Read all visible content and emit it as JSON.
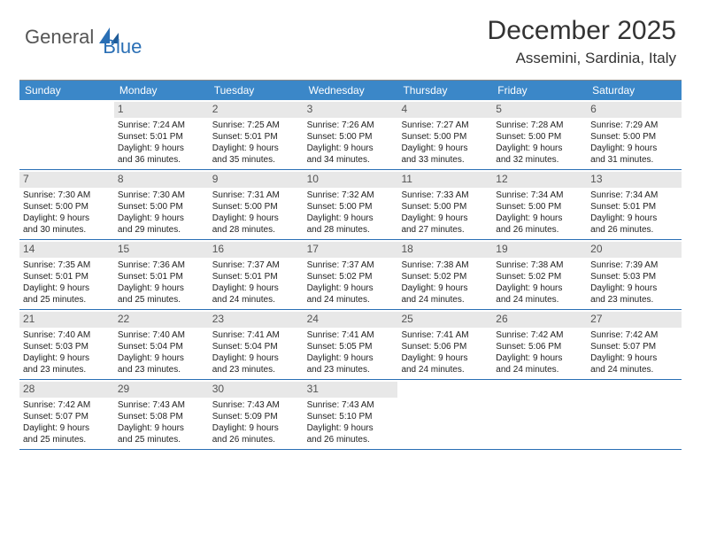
{
  "brand": {
    "general": "General",
    "blue": "Blue"
  },
  "title": "December 2025",
  "location": "Assemini, Sardinia, Italy",
  "colors": {
    "header_bg": "#3b87c8",
    "header_text": "#ffffff",
    "row_border": "#2a6fb5",
    "daynum_bg": "#e8e8e8",
    "text": "#333333"
  },
  "day_labels": [
    "Sunday",
    "Monday",
    "Tuesday",
    "Wednesday",
    "Thursday",
    "Friday",
    "Saturday"
  ],
  "weeks": [
    [
      {
        "n": "",
        "sr": "",
        "ss": "",
        "dl1": "",
        "dl2": "",
        "empty": true
      },
      {
        "n": "1",
        "sr": "Sunrise: 7:24 AM",
        "ss": "Sunset: 5:01 PM",
        "dl1": "Daylight: 9 hours",
        "dl2": "and 36 minutes."
      },
      {
        "n": "2",
        "sr": "Sunrise: 7:25 AM",
        "ss": "Sunset: 5:01 PM",
        "dl1": "Daylight: 9 hours",
        "dl2": "and 35 minutes."
      },
      {
        "n": "3",
        "sr": "Sunrise: 7:26 AM",
        "ss": "Sunset: 5:00 PM",
        "dl1": "Daylight: 9 hours",
        "dl2": "and 34 minutes."
      },
      {
        "n": "4",
        "sr": "Sunrise: 7:27 AM",
        "ss": "Sunset: 5:00 PM",
        "dl1": "Daylight: 9 hours",
        "dl2": "and 33 minutes."
      },
      {
        "n": "5",
        "sr": "Sunrise: 7:28 AM",
        "ss": "Sunset: 5:00 PM",
        "dl1": "Daylight: 9 hours",
        "dl2": "and 32 minutes."
      },
      {
        "n": "6",
        "sr": "Sunrise: 7:29 AM",
        "ss": "Sunset: 5:00 PM",
        "dl1": "Daylight: 9 hours",
        "dl2": "and 31 minutes."
      }
    ],
    [
      {
        "n": "7",
        "sr": "Sunrise: 7:30 AM",
        "ss": "Sunset: 5:00 PM",
        "dl1": "Daylight: 9 hours",
        "dl2": "and 30 minutes."
      },
      {
        "n": "8",
        "sr": "Sunrise: 7:30 AM",
        "ss": "Sunset: 5:00 PM",
        "dl1": "Daylight: 9 hours",
        "dl2": "and 29 minutes."
      },
      {
        "n": "9",
        "sr": "Sunrise: 7:31 AM",
        "ss": "Sunset: 5:00 PM",
        "dl1": "Daylight: 9 hours",
        "dl2": "and 28 minutes."
      },
      {
        "n": "10",
        "sr": "Sunrise: 7:32 AM",
        "ss": "Sunset: 5:00 PM",
        "dl1": "Daylight: 9 hours",
        "dl2": "and 28 minutes."
      },
      {
        "n": "11",
        "sr": "Sunrise: 7:33 AM",
        "ss": "Sunset: 5:00 PM",
        "dl1": "Daylight: 9 hours",
        "dl2": "and 27 minutes."
      },
      {
        "n": "12",
        "sr": "Sunrise: 7:34 AM",
        "ss": "Sunset: 5:00 PM",
        "dl1": "Daylight: 9 hours",
        "dl2": "and 26 minutes."
      },
      {
        "n": "13",
        "sr": "Sunrise: 7:34 AM",
        "ss": "Sunset: 5:01 PM",
        "dl1": "Daylight: 9 hours",
        "dl2": "and 26 minutes."
      }
    ],
    [
      {
        "n": "14",
        "sr": "Sunrise: 7:35 AM",
        "ss": "Sunset: 5:01 PM",
        "dl1": "Daylight: 9 hours",
        "dl2": "and 25 minutes."
      },
      {
        "n": "15",
        "sr": "Sunrise: 7:36 AM",
        "ss": "Sunset: 5:01 PM",
        "dl1": "Daylight: 9 hours",
        "dl2": "and 25 minutes."
      },
      {
        "n": "16",
        "sr": "Sunrise: 7:37 AM",
        "ss": "Sunset: 5:01 PM",
        "dl1": "Daylight: 9 hours",
        "dl2": "and 24 minutes."
      },
      {
        "n": "17",
        "sr": "Sunrise: 7:37 AM",
        "ss": "Sunset: 5:02 PM",
        "dl1": "Daylight: 9 hours",
        "dl2": "and 24 minutes."
      },
      {
        "n": "18",
        "sr": "Sunrise: 7:38 AM",
        "ss": "Sunset: 5:02 PM",
        "dl1": "Daylight: 9 hours",
        "dl2": "and 24 minutes."
      },
      {
        "n": "19",
        "sr": "Sunrise: 7:38 AM",
        "ss": "Sunset: 5:02 PM",
        "dl1": "Daylight: 9 hours",
        "dl2": "and 24 minutes."
      },
      {
        "n": "20",
        "sr": "Sunrise: 7:39 AM",
        "ss": "Sunset: 5:03 PM",
        "dl1": "Daylight: 9 hours",
        "dl2": "and 23 minutes."
      }
    ],
    [
      {
        "n": "21",
        "sr": "Sunrise: 7:40 AM",
        "ss": "Sunset: 5:03 PM",
        "dl1": "Daylight: 9 hours",
        "dl2": "and 23 minutes."
      },
      {
        "n": "22",
        "sr": "Sunrise: 7:40 AM",
        "ss": "Sunset: 5:04 PM",
        "dl1": "Daylight: 9 hours",
        "dl2": "and 23 minutes."
      },
      {
        "n": "23",
        "sr": "Sunrise: 7:41 AM",
        "ss": "Sunset: 5:04 PM",
        "dl1": "Daylight: 9 hours",
        "dl2": "and 23 minutes."
      },
      {
        "n": "24",
        "sr": "Sunrise: 7:41 AM",
        "ss": "Sunset: 5:05 PM",
        "dl1": "Daylight: 9 hours",
        "dl2": "and 23 minutes."
      },
      {
        "n": "25",
        "sr": "Sunrise: 7:41 AM",
        "ss": "Sunset: 5:06 PM",
        "dl1": "Daylight: 9 hours",
        "dl2": "and 24 minutes."
      },
      {
        "n": "26",
        "sr": "Sunrise: 7:42 AM",
        "ss": "Sunset: 5:06 PM",
        "dl1": "Daylight: 9 hours",
        "dl2": "and 24 minutes."
      },
      {
        "n": "27",
        "sr": "Sunrise: 7:42 AM",
        "ss": "Sunset: 5:07 PM",
        "dl1": "Daylight: 9 hours",
        "dl2": "and 24 minutes."
      }
    ],
    [
      {
        "n": "28",
        "sr": "Sunrise: 7:42 AM",
        "ss": "Sunset: 5:07 PM",
        "dl1": "Daylight: 9 hours",
        "dl2": "and 25 minutes."
      },
      {
        "n": "29",
        "sr": "Sunrise: 7:43 AM",
        "ss": "Sunset: 5:08 PM",
        "dl1": "Daylight: 9 hours",
        "dl2": "and 25 minutes."
      },
      {
        "n": "30",
        "sr": "Sunrise: 7:43 AM",
        "ss": "Sunset: 5:09 PM",
        "dl1": "Daylight: 9 hours",
        "dl2": "and 26 minutes."
      },
      {
        "n": "31",
        "sr": "Sunrise: 7:43 AM",
        "ss": "Sunset: 5:10 PM",
        "dl1": "Daylight: 9 hours",
        "dl2": "and 26 minutes."
      },
      {
        "n": "",
        "sr": "",
        "ss": "",
        "dl1": "",
        "dl2": "",
        "empty": true
      },
      {
        "n": "",
        "sr": "",
        "ss": "",
        "dl1": "",
        "dl2": "",
        "empty": true
      },
      {
        "n": "",
        "sr": "",
        "ss": "",
        "dl1": "",
        "dl2": "",
        "empty": true
      }
    ]
  ]
}
